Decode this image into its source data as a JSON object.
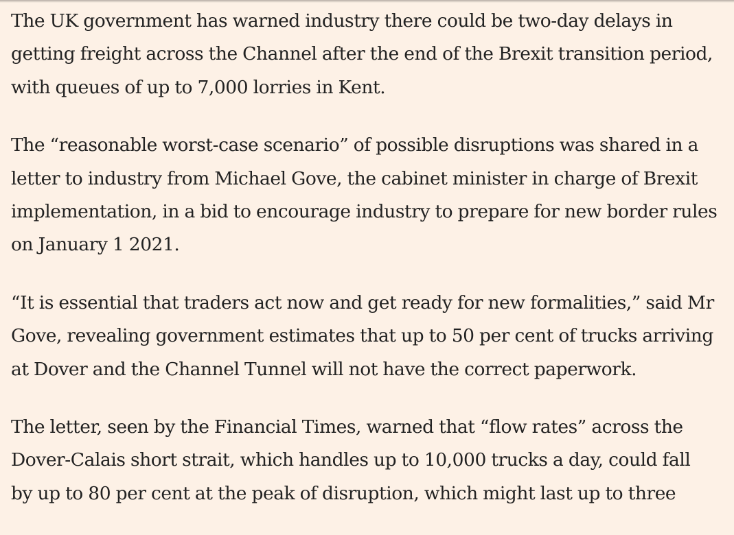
{
  "article": {
    "paragraphs": [
      {
        "lines": [
          "The UK government has warned industry there could be two-day delays in",
          "getting freight across the Channel after the end of the Brexit transition period,",
          "with queues of up to 7,000 lorries in Kent."
        ]
      },
      {
        "lines": [
          "The “reasonable worst-case scenario” of possible disruptions was shared in a",
          "letter to industry from Michael Gove, the cabinet minister in charge of Brexit",
          "implementation, in a bid to encourage industry to prepare for new border rules",
          "on January 1 2021."
        ]
      },
      {
        "lines": [
          "“It is essential that traders act now and get ready for new formalities,” said Mr",
          "Gove, revealing government estimates that up to 50 per cent of trucks arriving",
          "at Dover and the Channel Tunnel will not have the correct paperwork."
        ]
      },
      {
        "lines": [
          "The letter, seen by the Financial Times, warned that “flow rates” across the",
          "Dover-Calais short strait, which handles up to 10,000 trucks a day, could fall",
          "by up to 80 per cent at the peak of disruption, which might last up to three"
        ]
      }
    ]
  },
  "colors": {
    "background": "#fdf1e6",
    "text": "#222222"
  }
}
